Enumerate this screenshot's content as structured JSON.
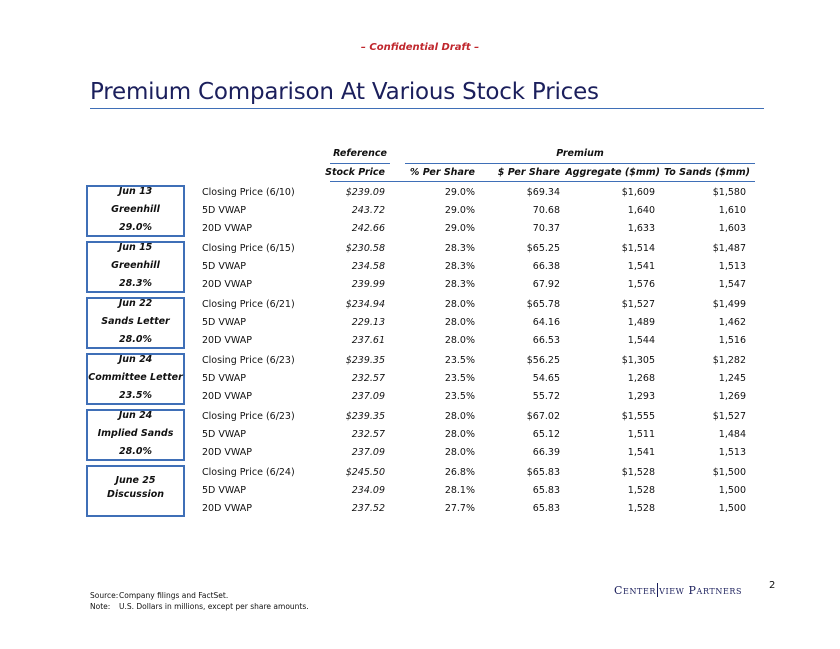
{
  "draft_label": "– Confidential Draft –",
  "title": "Premium Comparison At Various Stock Prices",
  "headers": {
    "reference_top": "Reference",
    "premium_top": "Premium",
    "stock_price": "Stock Price",
    "pct_per_share": "% Per Share",
    "usd_per_share": "$ Per Share",
    "aggregate": "Aggregate ($mm)",
    "to_sands": "To Sands ($mm)"
  },
  "groups": [
    {
      "lines": [
        "Jun 13",
        "Greenhill",
        "29.0%"
      ],
      "rows": [
        {
          "label": "Closing Price (6/10)",
          "ref": "$239.09",
          "pct": "29.0%",
          "dps": "$69.34",
          "agg": "$1,609",
          "sands": "$1,580"
        },
        {
          "label": "5D VWAP",
          "ref": "243.72",
          "pct": "29.0%",
          "dps": "70.68",
          "agg": "1,640",
          "sands": "1,610"
        },
        {
          "label": "20D VWAP",
          "ref": "242.66",
          "pct": "29.0%",
          "dps": "70.37",
          "agg": "1,633",
          "sands": "1,603"
        }
      ]
    },
    {
      "lines": [
        "Jun 15",
        "Greenhill",
        "28.3%"
      ],
      "rows": [
        {
          "label": "Closing Price (6/15)",
          "ref": "$230.58",
          "pct": "28.3%",
          "dps": "$65.25",
          "agg": "$1,514",
          "sands": "$1,487"
        },
        {
          "label": "5D VWAP",
          "ref": "234.58",
          "pct": "28.3%",
          "dps": "66.38",
          "agg": "1,541",
          "sands": "1,513"
        },
        {
          "label": "20D VWAP",
          "ref": "239.99",
          "pct": "28.3%",
          "dps": "67.92",
          "agg": "1,576",
          "sands": "1,547"
        }
      ]
    },
    {
      "lines": [
        "Jun 22",
        "Sands Letter",
        "28.0%"
      ],
      "rows": [
        {
          "label": "Closing Price (6/21)",
          "ref": "$234.94",
          "pct": "28.0%",
          "dps": "$65.78",
          "agg": "$1,527",
          "sands": "$1,499"
        },
        {
          "label": "5D VWAP",
          "ref": "229.13",
          "pct": "28.0%",
          "dps": "64.16",
          "agg": "1,489",
          "sands": "1,462"
        },
        {
          "label": "20D VWAP",
          "ref": "237.61",
          "pct": "28.0%",
          "dps": "66.53",
          "agg": "1,544",
          "sands": "1,516"
        }
      ]
    },
    {
      "lines": [
        "Jun 24",
        "Committee Letter",
        "23.5%"
      ],
      "rows": [
        {
          "label": "Closing Price (6/23)",
          "ref": "$239.35",
          "pct": "23.5%",
          "dps": "$56.25",
          "agg": "$1,305",
          "sands": "$1,282"
        },
        {
          "label": "5D VWAP",
          "ref": "232.57",
          "pct": "23.5%",
          "dps": "54.65",
          "agg": "1,268",
          "sands": "1,245"
        },
        {
          "label": "20D VWAP",
          "ref": "237.09",
          "pct": "23.5%",
          "dps": "55.72",
          "agg": "1,293",
          "sands": "1,269"
        }
      ]
    },
    {
      "lines": [
        "Jun 24",
        "Implied Sands",
        "28.0%"
      ],
      "rows": [
        {
          "label": "Closing Price (6/23)",
          "ref": "$239.35",
          "pct": "28.0%",
          "dps": "$67.02",
          "agg": "$1,555",
          "sands": "$1,527"
        },
        {
          "label": "5D VWAP",
          "ref": "232.57",
          "pct": "28.0%",
          "dps": "65.12",
          "agg": "1,511",
          "sands": "1,484"
        },
        {
          "label": "20D VWAP",
          "ref": "237.09",
          "pct": "28.0%",
          "dps": "66.39",
          "agg": "1,541",
          "sands": "1,513"
        }
      ]
    },
    {
      "lines": [
        "June 25",
        "Discussion"
      ],
      "rows": [
        {
          "label": "Closing Price (6/24)",
          "ref": "$245.50",
          "pct": "26.8%",
          "dps": "$65.83",
          "agg": "$1,528",
          "sands": "$1,500"
        },
        {
          "label": "5D VWAP",
          "ref": "234.09",
          "pct": "28.1%",
          "dps": "65.83",
          "agg": "1,528",
          "sands": "1,500"
        },
        {
          "label": "20D VWAP",
          "ref": "237.52",
          "pct": "27.7%",
          "dps": "65.83",
          "agg": "1,528",
          "sands": "1,500"
        }
      ]
    }
  ],
  "footnotes": [
    {
      "key": "Source:",
      "text": "Company filings and FactSet."
    },
    {
      "key": "Note:",
      "text": "U.S. Dollars in millions, except per share amounts."
    }
  ],
  "logo": {
    "part1": "Center",
    "part2": "view Partners"
  },
  "page_number": "2"
}
